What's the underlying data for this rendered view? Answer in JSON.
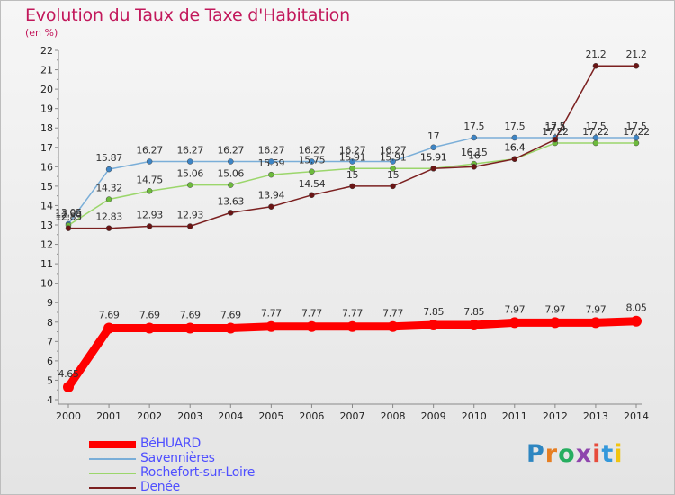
{
  "title": "Evolution du Taux de Taxe d'Habitation",
  "subtitle": "(en %)",
  "logo": {
    "text": "Proxiti",
    "letters": [
      {
        "ch": "P",
        "color": "#2e86c1"
      },
      {
        "ch": "r",
        "color": "#e67e22"
      },
      {
        "ch": "o",
        "color": "#27ae60"
      },
      {
        "ch": "x",
        "color": "#8e44ad"
      },
      {
        "ch": "i",
        "color": "#e74c3c"
      },
      {
        "ch": "t",
        "color": "#3498db"
      },
      {
        "ch": "i",
        "color": "#f1c40f"
      }
    ]
  },
  "chart_data": {
    "type": "line",
    "title": "Evolution du Taux de Taxe d'Habitation",
    "subtitle": "(en %)",
    "xlabel": "",
    "ylabel": "",
    "x": [
      2000,
      2001,
      2002,
      2003,
      2004,
      2005,
      2006,
      2007,
      2008,
      2009,
      2010,
      2011,
      2012,
      2013,
      2014
    ],
    "ylim": [
      4,
      22
    ],
    "yticks": [
      4,
      5,
      6,
      7,
      8,
      9,
      10,
      11,
      12,
      13,
      14,
      15,
      16,
      17,
      18,
      19,
      20,
      21,
      22
    ],
    "grid": false,
    "legend_position": "bottom-left",
    "series": [
      {
        "name": "BéHUARD",
        "color": "#ff0000",
        "point_color": "#ff0000",
        "line_width": 9,
        "marker_size": 6,
        "values": [
          4.65,
          7.69,
          7.69,
          7.69,
          7.69,
          7.77,
          7.77,
          7.77,
          7.77,
          7.85,
          7.85,
          7.97,
          7.97,
          7.97,
          8.05
        ],
        "labels": [
          "4.65",
          "7.69",
          "7.69",
          "7.69",
          "7.69",
          "7.77",
          "7.77",
          "7.77",
          "7.77",
          "7.85",
          "7.85",
          "7.97",
          "7.97",
          "7.97",
          "8.05"
        ]
      },
      {
        "name": "Savennières",
        "color": "#7aaed8",
        "point_color": "#3d85c6",
        "line_width": 1.5,
        "marker_size": 3,
        "values": [
          13.05,
          15.87,
          16.27,
          16.27,
          16.27,
          16.27,
          16.27,
          16.27,
          16.27,
          17.0,
          17.5,
          17.5,
          17.5,
          17.5,
          17.5
        ],
        "labels": [
          "13.05",
          "15.87",
          "16.27",
          "16.27",
          "16.27",
          "16.27",
          "16.27",
          "16.27",
          "16.27",
          "17",
          "17.5",
          "17.5",
          "17.5",
          "17.5",
          "17.5"
        ]
      },
      {
        "name": "Rochefort-sur-Loire",
        "color": "#9bd66b",
        "point_color": "#6dbb3c",
        "line_width": 1.5,
        "marker_size": 3,
        "values": [
          12.98,
          14.32,
          14.75,
          15.06,
          15.06,
          15.59,
          15.75,
          15.91,
          15.91,
          15.91,
          16.15,
          16.4,
          17.22,
          17.22,
          17.22
        ],
        "labels": [
          "12.98",
          "14.32",
          "14.75",
          "15.06",
          "15.06",
          "15.59",
          "15.75",
          "15.91",
          "15.91",
          "15.91",
          "16.15",
          "16.4",
          "17.22",
          "17.22",
          "17.22"
        ]
      },
      {
        "name": "Denée",
        "color": "#7b2020",
        "point_color": "#6a1515",
        "line_width": 1.5,
        "marker_size": 3,
        "values": [
          12.83,
          12.83,
          12.93,
          12.93,
          13.63,
          13.94,
          14.54,
          15.0,
          15.0,
          15.91,
          16.0,
          16.4,
          17.4,
          21.2,
          21.2
        ],
        "labels": [
          "12.83",
          "12.83",
          "12.93",
          "12.93",
          "13.63",
          "13.94",
          "14.54",
          "15",
          "15",
          "15.91",
          "16",
          "16.4",
          "17.4",
          "21.2",
          "21.2"
        ]
      }
    ]
  }
}
